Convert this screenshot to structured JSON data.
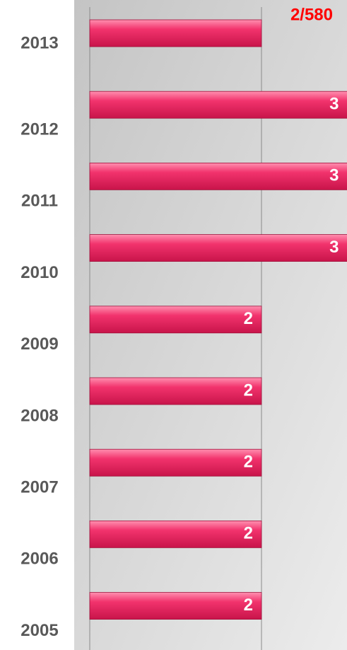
{
  "chart_data": {
    "type": "bar",
    "orientation": "horizontal",
    "categories": [
      "2013",
      "2012",
      "2011",
      "2010",
      "2009",
      "2008",
      "2007",
      "2006",
      "2005"
    ],
    "values": [
      2,
      3,
      3,
      3,
      2,
      2,
      2,
      2,
      2
    ],
    "value_labels": [
      "2/580",
      "3",
      "3",
      "3",
      "2",
      "2",
      "2",
      "2",
      "2"
    ],
    "value_label_colors": [
      "#ff0000",
      "#ffffff",
      "#ffffff",
      "#ffffff",
      "#ffffff",
      "#ffffff",
      "#ffffff",
      "#ffffff",
      "#ffffff"
    ],
    "color": "#f2336d",
    "xlim": [
      0,
      3
    ],
    "xticks": [
      0,
      2
    ],
    "show_tick_labels": false,
    "grid": true
  }
}
